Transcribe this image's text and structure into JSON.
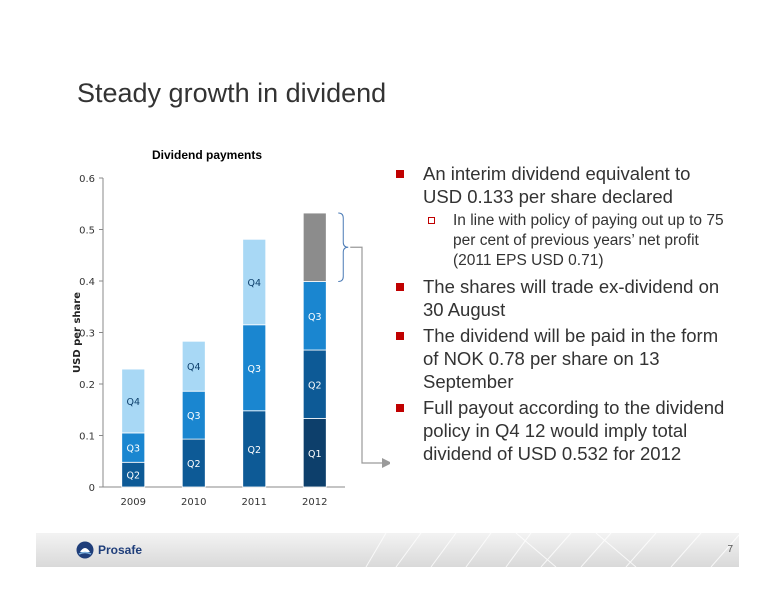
{
  "slide": {
    "title": "Steady growth in dividend",
    "page_number": "7"
  },
  "footer": {
    "logo_text": "Prosafe"
  },
  "bullets": [
    {
      "level": 1,
      "text": "An interim dividend equivalent to USD 0.133 per share declared"
    },
    {
      "level": 2,
      "text": "In line with policy of paying out up to 75 per cent of previous years’ net profit (2011 EPS USD 0.71)"
    },
    {
      "level": 1,
      "text": "The shares will trade ex-dividend on 30 August"
    },
    {
      "level": 1,
      "text": "The dividend will be paid in the form of NOK 0.78 per share on 13 September"
    },
    {
      "level": 1,
      "text": "Full payout according to the dividend policy in Q4 12 would imply total dividend of USD 0.532 for 2012"
    }
  ],
  "colors": {
    "Q1": "#0d3f6b",
    "Q2": "#0d5a96",
    "Q3": "#1a86d0",
    "Q4": "#a8d8f5",
    "projected": "#8c8c8c",
    "bullet": "#c00000",
    "text": "#333333",
    "arrow": "#9a9a9a"
  },
  "chart_data": {
    "type": "bar",
    "stacked": true,
    "title": "Dividend payments",
    "ylabel": "USD per share",
    "xlabel": "",
    "ylim": [
      0,
      0.6
    ],
    "yticks": [
      "0",
      "0.1",
      "0.2",
      "0.3",
      "0.4",
      "0.5",
      "0.6"
    ],
    "categories": [
      "2009",
      "2010",
      "2011",
      "2012"
    ],
    "stacks": [
      {
        "year": "2009",
        "segments": [
          {
            "label": "Q2",
            "value": 0.048,
            "color_key": "Q2"
          },
          {
            "label": "Q3",
            "value": 0.057,
            "color_key": "Q3"
          },
          {
            "label": "Q4",
            "value": 0.124,
            "color_key": "Q4"
          }
        ]
      },
      {
        "year": "2010",
        "segments": [
          {
            "label": "Q2",
            "value": 0.093,
            "color_key": "Q2"
          },
          {
            "label": "Q3",
            "value": 0.093,
            "color_key": "Q3"
          },
          {
            "label": "Q4",
            "value": 0.097,
            "color_key": "Q4"
          }
        ]
      },
      {
        "year": "2011",
        "segments": [
          {
            "label": "Q2",
            "value": 0.148,
            "color_key": "Q2"
          },
          {
            "label": "Q3",
            "value": 0.167,
            "color_key": "Q3"
          },
          {
            "label": "Q4",
            "value": 0.166,
            "color_key": "Q4"
          }
        ]
      },
      {
        "year": "2012",
        "segments": [
          {
            "label": "Q1",
            "value": 0.133,
            "color_key": "Q1"
          },
          {
            "label": "Q2",
            "value": 0.133,
            "color_key": "Q2"
          },
          {
            "label": "Q3",
            "value": 0.133,
            "color_key": "Q3"
          },
          {
            "label": "",
            "value": 0.133,
            "color_key": "projected"
          }
        ]
      }
    ],
    "grid": false,
    "legend": "none"
  }
}
